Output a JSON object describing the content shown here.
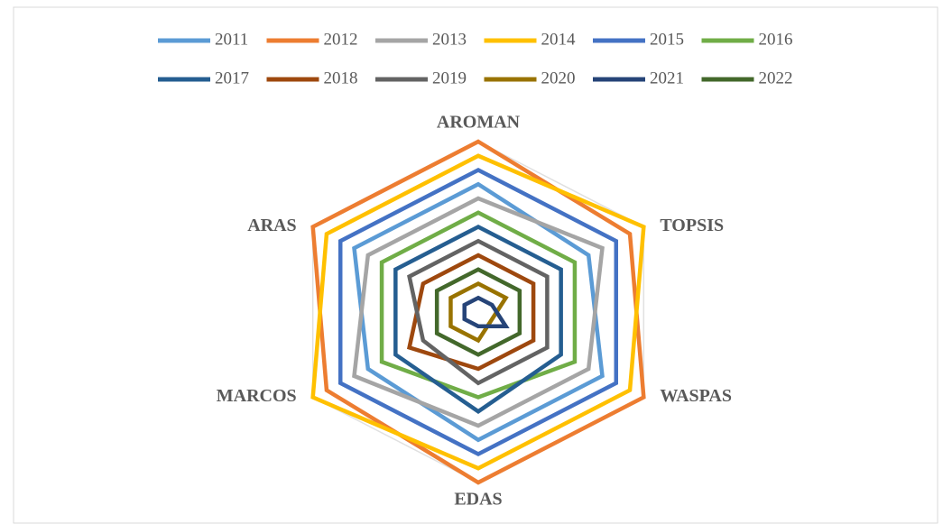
{
  "chart_data": {
    "type": "radar",
    "categories": [
      "AROMAN",
      "TOPSIS",
      "WASPAS",
      "EDAS",
      "MARCOS",
      "ARAS"
    ],
    "ylim": [
      0,
      12
    ],
    "series": [
      {
        "name": "2011",
        "color": "#5b9bd5",
        "values": [
          9,
          8,
          9,
          9,
          8,
          9
        ]
      },
      {
        "name": "2012",
        "color": "#ed7d31",
        "values": [
          12,
          11,
          12,
          12,
          11,
          12
        ]
      },
      {
        "name": "2013",
        "color": "#a5a5a5",
        "values": [
          8,
          9,
          8,
          8,
          9,
          8
        ]
      },
      {
        "name": "2014",
        "color": "#ffc000",
        "values": [
          11,
          12,
          11,
          11,
          12,
          11
        ]
      },
      {
        "name": "2015",
        "color": "#4472c4",
        "values": [
          10,
          10,
          10,
          10,
          10,
          10
        ]
      },
      {
        "name": "2016",
        "color": "#70ad47",
        "values": [
          7,
          7,
          7,
          6,
          7,
          7
        ]
      },
      {
        "name": "2017",
        "color": "#255e91",
        "values": [
          6,
          6,
          6,
          7,
          6,
          6
        ]
      },
      {
        "name": "2018",
        "color": "#9e480e",
        "values": [
          4,
          4,
          4,
          4,
          5,
          4
        ]
      },
      {
        "name": "2019",
        "color": "#636363",
        "values": [
          5,
          5,
          5,
          5,
          4,
          5
        ]
      },
      {
        "name": "2020",
        "color": "#997300",
        "values": [
          2,
          2,
          1,
          2,
          2,
          2
        ]
      },
      {
        "name": "2021",
        "color": "#264478",
        "values": [
          1,
          1,
          2,
          1,
          1,
          1
        ]
      },
      {
        "name": "2022",
        "color": "#43682b",
        "values": [
          3,
          3,
          3,
          3,
          3,
          3
        ]
      }
    ]
  }
}
